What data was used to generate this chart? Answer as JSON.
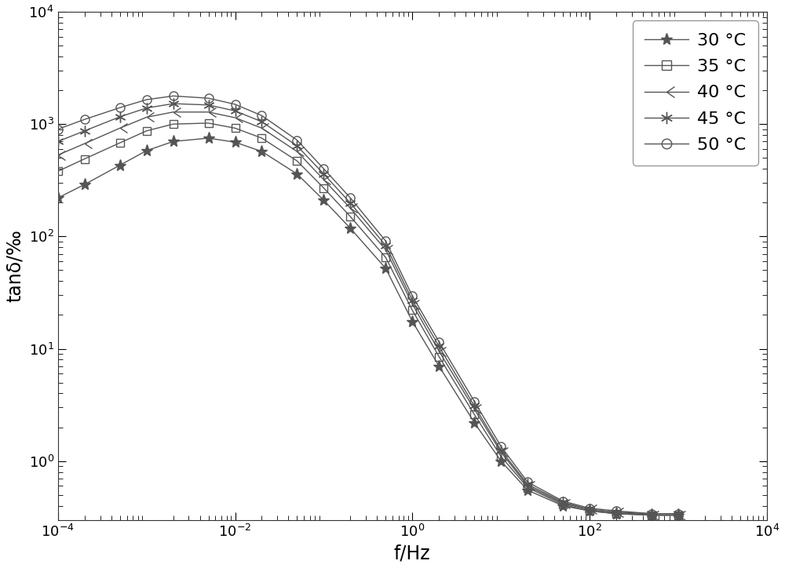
{
  "xlabel": "f/Hz",
  "ylabel": "tanδ/‰",
  "xlim": [
    0.0001,
    10000.0
  ],
  "ylim": [
    0.3,
    10000.0
  ],
  "series": [
    {
      "label": "30 °C",
      "marker": "*",
      "freq": [
        0.0001,
        0.0002,
        0.0005,
        0.001,
        0.002,
        0.005,
        0.01,
        0.02,
        0.05,
        0.1,
        0.2,
        0.5,
        1.0,
        2.0,
        5.0,
        10.0,
        20.0,
        50.0,
        100.0,
        200.0,
        500.0,
        1000.0
      ],
      "tand": [
        220,
        290,
        430,
        580,
        700,
        750,
        690,
        570,
        360,
        210,
        118,
        52,
        17.5,
        7.0,
        2.2,
        1.0,
        0.55,
        0.4,
        0.36,
        0.34,
        0.33,
        0.33
      ]
    },
    {
      "label": "35 °C",
      "marker": "s",
      "freq": [
        0.0001,
        0.0002,
        0.0005,
        0.001,
        0.002,
        0.005,
        0.01,
        0.02,
        0.05,
        0.1,
        0.2,
        0.5,
        1.0,
        2.0,
        5.0,
        10.0,
        20.0,
        50.0,
        100.0,
        200.0,
        500.0,
        1000.0
      ],
      "tand": [
        380,
        490,
        680,
        870,
        1000,
        1020,
        920,
        750,
        470,
        270,
        150,
        65,
        22.0,
        8.5,
        2.6,
        1.1,
        0.58,
        0.41,
        0.36,
        0.34,
        0.33,
        0.33
      ]
    },
    {
      "label": "40 °C",
      "marker": "tri_left",
      "freq": [
        0.0001,
        0.0002,
        0.0005,
        0.001,
        0.002,
        0.005,
        0.01,
        0.02,
        0.05,
        0.1,
        0.2,
        0.5,
        1.0,
        2.0,
        5.0,
        10.0,
        20.0,
        50.0,
        100.0,
        200.0,
        500.0,
        1000.0
      ],
      "tand": [
        530,
        670,
        920,
        1150,
        1280,
        1280,
        1140,
        920,
        570,
        320,
        178,
        76,
        25.0,
        9.5,
        2.9,
        1.2,
        0.6,
        0.42,
        0.37,
        0.35,
        0.33,
        0.33
      ]
    },
    {
      "label": "45 °C",
      "marker": "star",
      "freq": [
        0.0001,
        0.0002,
        0.0005,
        0.001,
        0.002,
        0.005,
        0.01,
        0.02,
        0.05,
        0.1,
        0.2,
        0.5,
        1.0,
        2.0,
        5.0,
        10.0,
        20.0,
        50.0,
        100.0,
        200.0,
        500.0,
        1000.0
      ],
      "tand": [
        700,
        870,
        1160,
        1390,
        1520,
        1480,
        1310,
        1050,
        640,
        360,
        198,
        83,
        27.0,
        10.5,
        3.1,
        1.25,
        0.62,
        0.43,
        0.37,
        0.35,
        0.34,
        0.34
      ]
    },
    {
      "label": "50 °C",
      "marker": "o",
      "freq": [
        0.0001,
        0.0002,
        0.0005,
        0.001,
        0.002,
        0.005,
        0.01,
        0.02,
        0.05,
        0.1,
        0.2,
        0.5,
        1.0,
        2.0,
        5.0,
        10.0,
        20.0,
        50.0,
        100.0,
        200.0,
        500.0,
        1000.0
      ],
      "tand": [
        900,
        1100,
        1400,
        1650,
        1780,
        1700,
        1500,
        1190,
        720,
        400,
        220,
        91,
        29.5,
        11.5,
        3.4,
        1.35,
        0.65,
        0.44,
        0.38,
        0.36,
        0.34,
        0.34
      ]
    }
  ],
  "legend_labels": [
    "30 °C",
    "35 °C",
    "40 °C",
    "45 °C",
    "50 °C"
  ],
  "background_color": "#ffffff",
  "line_color": "#555555",
  "fontsize_label": 17,
  "fontsize_tick": 13,
  "fontsize_legend": 16
}
